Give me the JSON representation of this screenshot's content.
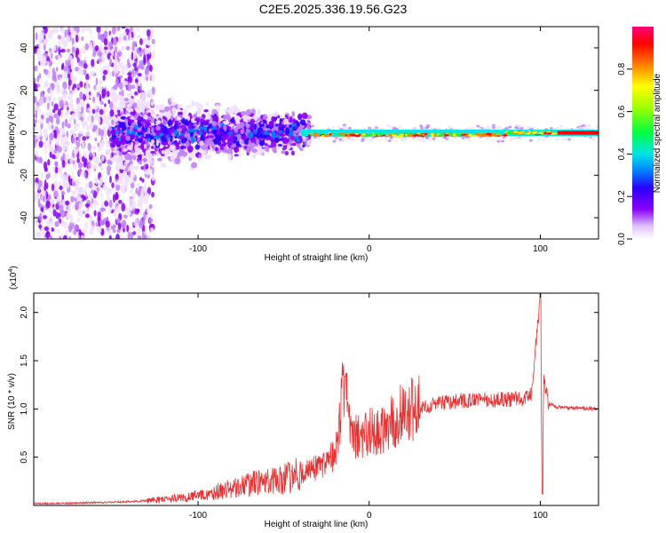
{
  "title": "C2E5.2025.336.19.56.G23",
  "chart_data": [
    {
      "type": "heatmap",
      "xlabel": "Height of straight line (km)",
      "ylabel": "Frequency (Hz)",
      "xlim": [
        -196,
        134
      ],
      "ylim": [
        -50,
        50
      ],
      "xticks": [
        -100,
        0,
        100
      ],
      "yticks": [
        -40,
        -20,
        0,
        20,
        40
      ],
      "colorbar": {
        "label": "Normalized spectral amplitude",
        "range": [
          0,
          1
        ],
        "ticks": [
          0.0,
          0.2,
          0.4,
          0.6,
          0.8
        ],
        "tick_labels": [
          "0.0",
          "0.2",
          "0.4",
          "0.6",
          "0.8"
        ],
        "colormap": [
          "#ffffff",
          "#8a00ff",
          "#2a00ff",
          "#0080ff",
          "#00e5e5",
          "#00ff40",
          "#ffff00",
          "#ff8000",
          "#ff0000",
          "#ff0080"
        ]
      },
      "description_regions": [
        {
          "x_range": [
            -196,
            -140
          ],
          "freq_spread": 50,
          "amplitude": 0.15
        },
        {
          "x_range": [
            -150,
            -40
          ],
          "freq_spread": 12,
          "amplitude": 0.3
        },
        {
          "x_range": [
            -40,
            134
          ],
          "freq_spread": 2,
          "amplitude": 0.9
        }
      ]
    },
    {
      "type": "line",
      "xlabel": "Height of straight line (km)",
      "ylabel": "SNR (10 * v/v)",
      "y_exponent_label": "(x10",
      "y_exponent": "4",
      "xlim": [
        -196,
        134
      ],
      "ylim": [
        0,
        2.2
      ],
      "xticks": [
        -100,
        0,
        100
      ],
      "yticks": [
        0.5,
        1.0,
        1.5,
        2.0
      ],
      "ytick_labels": [
        "0.5",
        "1.0",
        "1.5",
        "2.0"
      ],
      "series": [
        {
          "name": "SNR",
          "color": "#e83030",
          "x": [
            -196,
            -180,
            -160,
            -140,
            -120,
            -100,
            -80,
            -60,
            -40,
            -30,
            -20,
            -14,
            -10,
            0,
            10,
            20,
            30,
            40,
            50,
            60,
            70,
            80,
            90,
            95,
            100,
            101,
            102,
            105,
            110,
            120,
            134
          ],
          "y": [
            0.02,
            0.02,
            0.03,
            0.04,
            0.06,
            0.1,
            0.18,
            0.25,
            0.32,
            0.4,
            0.55,
            1.34,
            0.7,
            0.75,
            0.82,
            0.95,
            1.02,
            1.05,
            1.08,
            1.1,
            1.09,
            1.1,
            1.1,
            1.15,
            2.2,
            0.12,
            1.3,
            1.05,
            1.02,
            1.01,
            1.0
          ]
        }
      ]
    }
  ]
}
